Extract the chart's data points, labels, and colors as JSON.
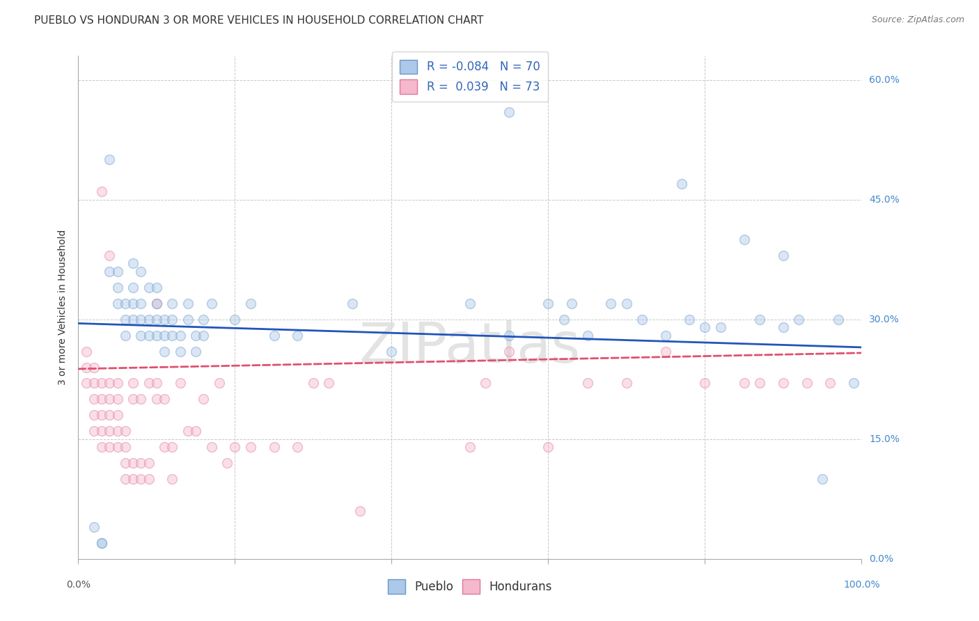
{
  "title": "PUEBLO VS HONDURAN 3 OR MORE VEHICLES IN HOUSEHOLD CORRELATION CHART",
  "source": "Source: ZipAtlas.com",
  "ylabel": "3 or more Vehicles in Household",
  "xlim": [
    0,
    1
  ],
  "ylim": [
    0,
    0.63
  ],
  "xticks": [
    0.0,
    0.2,
    0.4,
    0.6,
    0.8,
    1.0
  ],
  "xticklabels_edges": [
    "0.0%",
    "100.0%"
  ],
  "yticks": [
    0.0,
    0.15,
    0.3,
    0.45,
    0.6
  ],
  "yticklabels": [
    "0.0%",
    "15.0%",
    "30.0%",
    "45.0%",
    "60.0%"
  ],
  "grid_color": "#c8c8c8",
  "background_color": "#ffffff",
  "pueblo_color": "#adc8e8",
  "honduran_color": "#f5b8cc",
  "pueblo_edge_color": "#6699cc",
  "honduran_edge_color": "#e07898",
  "pueblo_line_color": "#2255bb",
  "honduran_line_color": "#e05070",
  "pueblo_R": -0.084,
  "pueblo_N": 70,
  "honduran_R": 0.039,
  "honduran_N": 73,
  "pueblo_trend_start": 0.295,
  "pueblo_trend_end": 0.265,
  "honduran_trend_start": 0.238,
  "honduran_trend_end": 0.258,
  "pueblo_x": [
    0.02,
    0.03,
    0.03,
    0.04,
    0.04,
    0.05,
    0.05,
    0.05,
    0.06,
    0.06,
    0.06,
    0.07,
    0.07,
    0.07,
    0.07,
    0.08,
    0.08,
    0.08,
    0.08,
    0.09,
    0.09,
    0.09,
    0.1,
    0.1,
    0.1,
    0.1,
    0.11,
    0.11,
    0.11,
    0.12,
    0.12,
    0.12,
    0.13,
    0.13,
    0.14,
    0.14,
    0.15,
    0.15,
    0.16,
    0.16,
    0.17,
    0.2,
    0.22,
    0.25,
    0.28,
    0.35,
    0.4,
    0.5,
    0.55,
    0.6,
    0.62,
    0.65,
    0.68,
    0.7,
    0.72,
    0.75,
    0.78,
    0.8,
    0.82,
    0.85,
    0.87,
    0.9,
    0.92,
    0.95,
    0.97,
    0.99,
    0.55,
    0.63,
    0.77,
    0.9
  ],
  "pueblo_y": [
    0.04,
    0.02,
    0.02,
    0.5,
    0.36,
    0.32,
    0.34,
    0.36,
    0.28,
    0.3,
    0.32,
    0.3,
    0.32,
    0.34,
    0.37,
    0.28,
    0.3,
    0.32,
    0.36,
    0.28,
    0.3,
    0.34,
    0.28,
    0.3,
    0.32,
    0.34,
    0.26,
    0.28,
    0.3,
    0.28,
    0.3,
    0.32,
    0.26,
    0.28,
    0.3,
    0.32,
    0.26,
    0.28,
    0.28,
    0.3,
    0.32,
    0.3,
    0.32,
    0.28,
    0.28,
    0.32,
    0.26,
    0.32,
    0.28,
    0.32,
    0.3,
    0.28,
    0.32,
    0.32,
    0.3,
    0.28,
    0.3,
    0.29,
    0.29,
    0.4,
    0.3,
    0.29,
    0.3,
    0.1,
    0.3,
    0.22,
    0.56,
    0.32,
    0.47,
    0.38
  ],
  "honduran_x": [
    0.01,
    0.01,
    0.01,
    0.02,
    0.02,
    0.02,
    0.02,
    0.02,
    0.03,
    0.03,
    0.03,
    0.03,
    0.03,
    0.03,
    0.04,
    0.04,
    0.04,
    0.04,
    0.04,
    0.04,
    0.05,
    0.05,
    0.05,
    0.05,
    0.05,
    0.06,
    0.06,
    0.06,
    0.06,
    0.07,
    0.07,
    0.07,
    0.07,
    0.08,
    0.08,
    0.08,
    0.09,
    0.09,
    0.09,
    0.1,
    0.1,
    0.11,
    0.11,
    0.12,
    0.12,
    0.13,
    0.14,
    0.15,
    0.16,
    0.17,
    0.18,
    0.19,
    0.2,
    0.22,
    0.25,
    0.28,
    0.3,
    0.32,
    0.36,
    0.5,
    0.52,
    0.55,
    0.6,
    0.65,
    0.7,
    0.75,
    0.8,
    0.85,
    0.87,
    0.9,
    0.93,
    0.96,
    0.1
  ],
  "honduran_y": [
    0.22,
    0.24,
    0.26,
    0.2,
    0.22,
    0.24,
    0.16,
    0.18,
    0.2,
    0.22,
    0.14,
    0.16,
    0.18,
    0.46,
    0.18,
    0.2,
    0.22,
    0.14,
    0.16,
    0.38,
    0.14,
    0.16,
    0.18,
    0.2,
    0.22,
    0.1,
    0.12,
    0.14,
    0.16,
    0.22,
    0.1,
    0.12,
    0.2,
    0.1,
    0.12,
    0.2,
    0.22,
    0.1,
    0.12,
    0.2,
    0.22,
    0.2,
    0.14,
    0.1,
    0.14,
    0.22,
    0.16,
    0.16,
    0.2,
    0.14,
    0.22,
    0.12,
    0.14,
    0.14,
    0.14,
    0.14,
    0.22,
    0.22,
    0.06,
    0.14,
    0.22,
    0.26,
    0.14,
    0.22,
    0.22,
    0.26,
    0.22,
    0.22,
    0.22,
    0.22,
    0.22,
    0.22,
    0.32
  ],
  "watermark": "ZIPatlas",
  "marker_size": 100,
  "marker_alpha": 0.45,
  "line_width": 2.0,
  "title_fontsize": 11,
  "axis_label_fontsize": 10,
  "tick_fontsize": 10,
  "legend_fontsize": 12
}
